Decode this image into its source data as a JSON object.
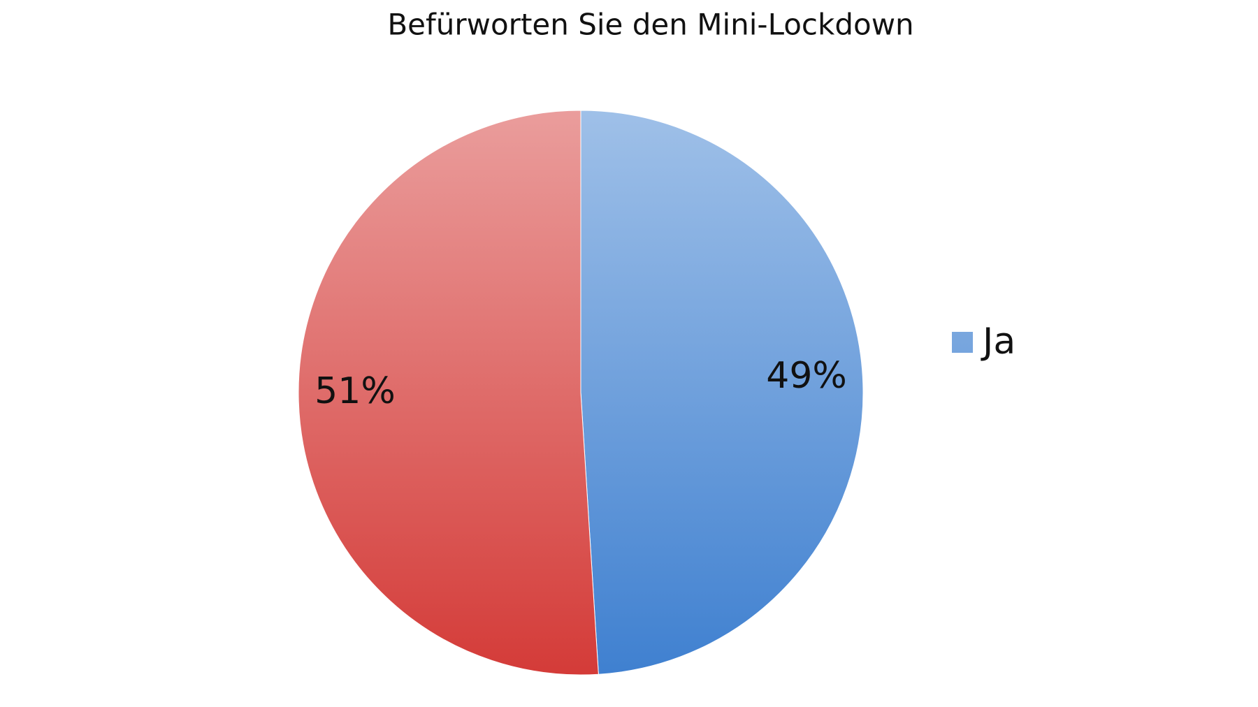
{
  "chart_data": {
    "type": "pie",
    "title": "Befürworten Sie den Mini-Lockdown",
    "categories": [
      "Ja",
      null
    ],
    "values": [
      49,
      51
    ],
    "value_labels": [
      "49%",
      "51%"
    ],
    "colors": [
      "#3f80d0",
      "#d43b38"
    ],
    "legend": "right"
  }
}
